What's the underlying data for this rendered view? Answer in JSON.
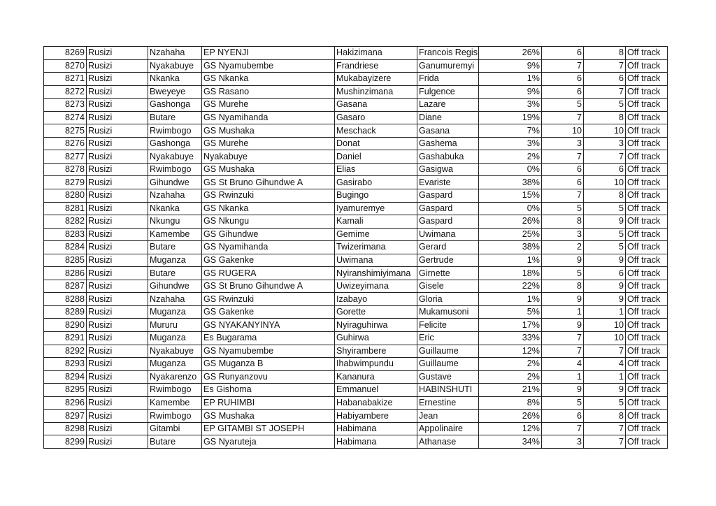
{
  "table": {
    "rows": [
      [
        "8269",
        "Rusizi",
        "Nzahaha",
        "EP NYENJI",
        "Hakizimana",
        "Francois Regis",
        "26%",
        "6",
        "8",
        "Off track"
      ],
      [
        "8270",
        "Rusizi",
        "Nyakabuye",
        "GS Nyamubembe",
        "Frandriese",
        "Ganumuremyi",
        "9%",
        "7",
        "7",
        "Off track"
      ],
      [
        "8271",
        "Rusizi",
        "Nkanka",
        "GS Nkanka",
        "Mukabayizere",
        "Frida",
        "1%",
        "6",
        "6",
        "Off track"
      ],
      [
        "8272",
        "Rusizi",
        "Bweyeye",
        "GS Rasano",
        "Mushinzimana",
        "Fulgence",
        "9%",
        "6",
        "7",
        "Off track"
      ],
      [
        "8273",
        "Rusizi",
        "Gashonga",
        "GS Murehe",
        "Gasana",
        "Lazare",
        "3%",
        "5",
        "5",
        "Off track"
      ],
      [
        "8274",
        "Rusizi",
        "Butare",
        "GS Nyamihanda",
        "Gasaro",
        "Diane",
        "19%",
        "7",
        "8",
        "Off track"
      ],
      [
        "8275",
        "Rusizi",
        "Rwimbogo",
        "GS Mushaka",
        "Meschack",
        "Gasana",
        "7%",
        "10",
        "10",
        "Off track"
      ],
      [
        "8276",
        "Rusizi",
        "Gashonga",
        "GS Murehe",
        "Donat",
        "Gashema",
        "3%",
        "3",
        "3",
        "Off track"
      ],
      [
        "8277",
        "Rusizi",
        "Nyakabuye",
        "Nyakabuye",
        "Daniel",
        "Gashabuka",
        "2%",
        "7",
        "7",
        "Off track"
      ],
      [
        "8278",
        "Rusizi",
        "Rwimbogo",
        "GS Mushaka",
        "Elias",
        "Gasigwa",
        "0%",
        "6",
        "6",
        "Off track"
      ],
      [
        "8279",
        "Rusizi",
        "Gihundwe",
        "GS St Bruno Gihundwe A",
        "Gasirabo",
        "Evariste",
        "38%",
        "6",
        "10",
        "Off track"
      ],
      [
        "8280",
        "Rusizi",
        "Nzahaha",
        "GS Rwinzuki",
        "Bugingo",
        "Gaspard",
        "15%",
        "7",
        "8",
        "Off track"
      ],
      [
        "8281",
        "Rusizi",
        "Nkanka",
        "GS Nkanka",
        "Iyamuremye",
        "Gaspard",
        "0%",
        "5",
        "5",
        "Off track"
      ],
      [
        "8282",
        "Rusizi",
        "Nkungu",
        "GS Nkungu",
        "Kamali",
        "Gaspard",
        "26%",
        "8",
        "9",
        "Off track"
      ],
      [
        "8283",
        "Rusizi",
        "Kamembe",
        "GS Gihundwe",
        "Gemime",
        "Uwimana",
        "25%",
        "3",
        "5",
        "Off track"
      ],
      [
        "8284",
        "Rusizi",
        "Butare",
        "GS Nyamihanda",
        "Twizerimana",
        "Gerard",
        "38%",
        "2",
        "5",
        "Off track"
      ],
      [
        "8285",
        "Rusizi",
        "Muganza",
        "GS Gakenke",
        "Uwimana",
        "Gertrude",
        "1%",
        "9",
        "9",
        "Off track"
      ],
      [
        "8286",
        "Rusizi",
        "Butare",
        "GS RUGERA",
        "Nyiranshimiyimana",
        "Girnette",
        "18%",
        "5",
        "6",
        "Off track"
      ],
      [
        "8287",
        "Rusizi",
        "Gihundwe",
        "GS St Bruno Gihundwe A",
        "Uwizeyimana",
        "Gisele",
        "22%",
        "8",
        "9",
        "Off track"
      ],
      [
        "8288",
        "Rusizi",
        "Nzahaha",
        "GS Rwinzuki",
        "Izabayo",
        "Gloria",
        "1%",
        "9",
        "9",
        "Off track"
      ],
      [
        "8289",
        "Rusizi",
        "Muganza",
        "GS Gakenke",
        "Gorette",
        "Mukamusoni",
        "5%",
        "1",
        "1",
        "Off track"
      ],
      [
        "8290",
        "Rusizi",
        "Mururu",
        "GS NYAKANYINYA",
        "Nyiraguhirwa",
        "Felicite",
        "17%",
        "9",
        "10",
        "Off track"
      ],
      [
        "8291",
        "Rusizi",
        "Muganza",
        "Es Bugarama",
        "Guhirwa",
        "Eric",
        "33%",
        "7",
        "10",
        "Off track"
      ],
      [
        "8292",
        "Rusizi",
        "Nyakabuye",
        "GS Nyamubembe",
        "Shyirambere",
        "Guillaume",
        "12%",
        "7",
        "7",
        "Off track"
      ],
      [
        "8293",
        "Rusizi",
        "Muganza",
        "GS Muganza B",
        "Ihabwimpundu",
        "Guillaume",
        "2%",
        "4",
        "4",
        "Off track"
      ],
      [
        "8294",
        "Rusizi",
        "Nyakarenzo",
        "GS Runyanzovu",
        "Kananura",
        "Gustave",
        "2%",
        "1",
        "1",
        "Off track"
      ],
      [
        "8295",
        "Rusizi",
        "Rwimbogo",
        "Es Gishoma",
        "Emmanuel",
        "HABINSHUTI",
        "21%",
        "9",
        "9",
        "Off track"
      ],
      [
        "8296",
        "Rusizi",
        "Kamembe",
        "EP RUHIMBI",
        "Habanabakize",
        "Ernestine",
        "8%",
        "5",
        "5",
        "Off track"
      ],
      [
        "8297",
        "Rusizi",
        "Rwimbogo",
        "GS Mushaka",
        "Habiyambere",
        "Jean",
        "26%",
        "6",
        "8",
        "Off track"
      ],
      [
        "8298",
        "Rusizi",
        "Gitambi",
        "EP GITAMBI ST JOSEPH",
        "Habimana",
        "Appolinaire",
        "12%",
        "7",
        "7",
        "Off track"
      ],
      [
        "8299",
        "Rusizi",
        "Butare",
        "GS Nyaruteja",
        "Habimana",
        "Athanase",
        "34%",
        "3",
        "7",
        "Off track"
      ]
    ]
  }
}
